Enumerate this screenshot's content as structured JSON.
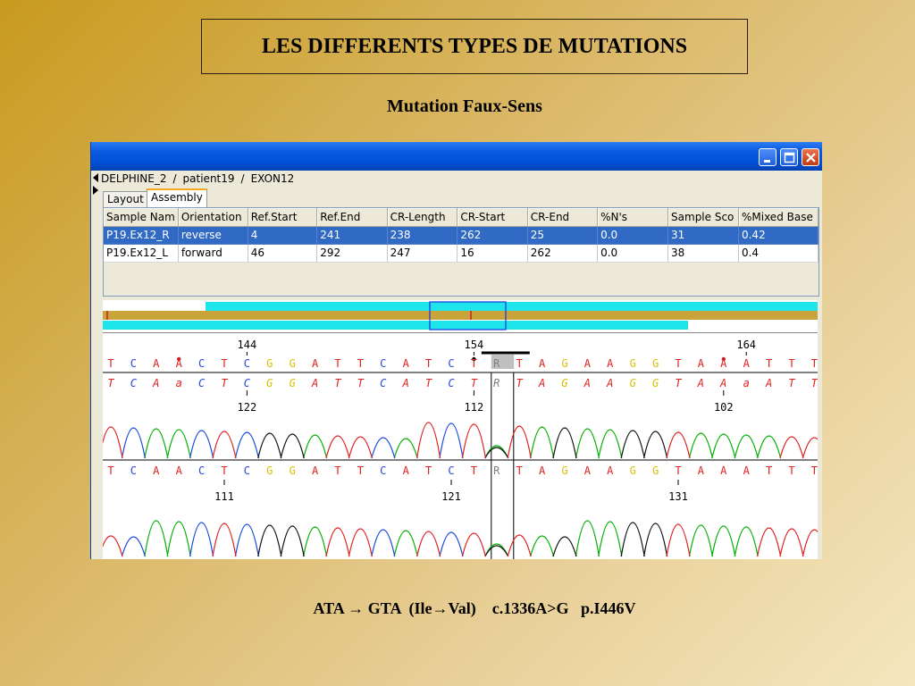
{
  "slide": {
    "title": "LES DIFFERENTS TYPES DE MUTATIONS",
    "subtitle": "Mutation Faux-Sens",
    "caption": "ATA → GTA  (Ile→Val)    c.1336A>G   p.I446V"
  },
  "app": {
    "breadcrumb": [
      "DELPHINE_2",
      "patient19",
      "EXON12"
    ],
    "breadcrumb_sep": "/",
    "tabs": [
      "Layout",
      "Assembly"
    ],
    "active_tab": "Assembly",
    "window_controls": [
      "minimize-icon",
      "maximize-icon",
      "close-icon"
    ],
    "table": {
      "columns": [
        "Sample Nam",
        "Orientation",
        "Ref.Start",
        "Ref.End",
        "CR-Length",
        "CR-Start",
        "CR-End",
        "%N's",
        "Sample Sco",
        "%Mixed Base"
      ],
      "rows": [
        [
          "P19.Ex12_R",
          "reverse",
          "4",
          "241",
          "238",
          "262",
          "25",
          "0.0",
          "31",
          "0.42"
        ],
        [
          "P19.Ex12_L",
          "forward",
          "46",
          "292",
          "247",
          "16",
          "262",
          "0.0",
          "38",
          "0.4"
        ]
      ],
      "selected_row": 0
    },
    "trace": {
      "reference_bases": "TCAACTCGGATTCATCTRTAGAAGGTAAATTT",
      "read1_bases": "TCAaCTCGGATTCATCTRTAGAAGGTAAaATT",
      "read2_bases": "TCAACTCGGATTCATCTRTAGAAGGTAAATTT",
      "top_positions": [
        "144",
        "154",
        "164"
      ],
      "read1_positions": [
        "122",
        "112",
        "102"
      ],
      "read2_positions": [
        "111",
        "121",
        "131"
      ],
      "highlight_base": "R",
      "base_colors": {
        "A": "#e02020",
        "C": "#2848d8",
        "G": "#d8c000",
        "T": "#e02020",
        "R": "#808080"
      }
    }
  }
}
